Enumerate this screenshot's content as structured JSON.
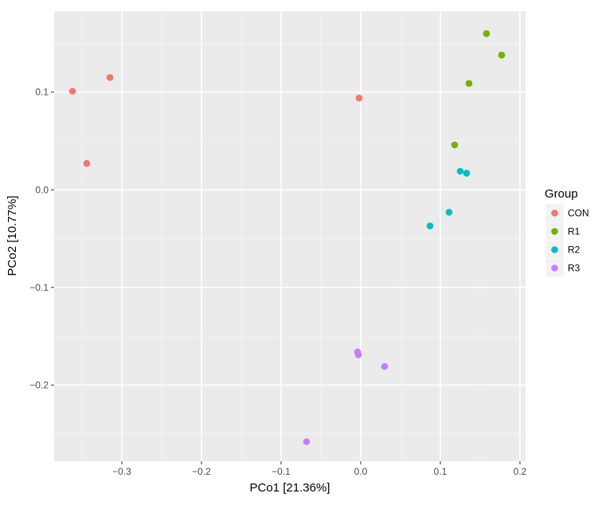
{
  "chart_data": {
    "type": "scatter",
    "xlabel": "PCo1 [21.36%]",
    "ylabel": "PCo2 [10.77%]",
    "xlim": [
      -0.385,
      0.207
    ],
    "ylim": [
      -0.278,
      0.183
    ],
    "x_ticks": [
      -0.3,
      -0.2,
      -0.1,
      0.0,
      0.1,
      0.2
    ],
    "x_tick_labels": [
      "−0.3",
      "−0.2",
      "−0.1",
      "0.0",
      "0.1",
      "0.2"
    ],
    "y_ticks": [
      -0.2,
      -0.1,
      0.0,
      0.1
    ],
    "y_tick_labels": [
      "−0.2",
      "−0.1",
      "0.0",
      "0.1"
    ],
    "grid": true,
    "background": "#EBEBEB",
    "legend": {
      "title": "Group",
      "position": "right"
    },
    "series": [
      {
        "name": "CON",
        "color": "#F8766D",
        "points": [
          [
            -0.362,
            0.101
          ],
          [
            -0.315,
            0.115
          ],
          [
            -0.344,
            0.027
          ],
          [
            -0.002,
            0.094
          ]
        ]
      },
      {
        "name": "R1",
        "color": "#7CAE00",
        "points": [
          [
            0.158,
            0.16
          ],
          [
            0.177,
            0.138
          ],
          [
            0.136,
            0.109
          ],
          [
            0.118,
            0.046
          ]
        ]
      },
      {
        "name": "R2",
        "color": "#00BFC4",
        "points": [
          [
            0.125,
            0.019
          ],
          [
            0.133,
            0.017
          ],
          [
            0.111,
            -0.023
          ],
          [
            0.087,
            -0.037
          ]
        ]
      },
      {
        "name": "R3",
        "color": "#C77CFF",
        "points": [
          [
            -0.004,
            -0.166
          ],
          [
            -0.003,
            -0.169
          ],
          [
            0.03,
            -0.181
          ],
          [
            -0.068,
            -0.258
          ]
        ]
      }
    ]
  }
}
